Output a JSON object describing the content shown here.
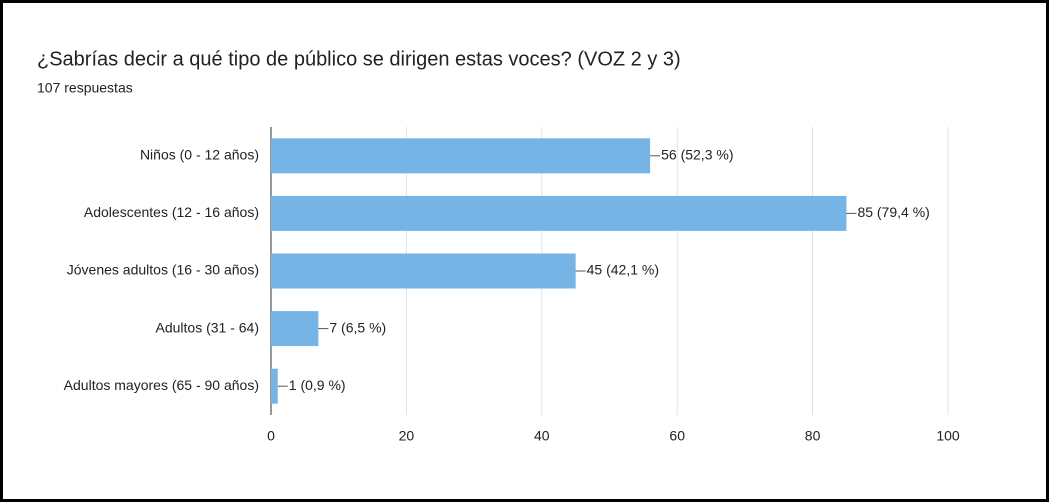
{
  "chart_data": {
    "type": "hbar",
    "title": "¿Sabrías decir a qué tipo de público se dirigen estas voces? (VOZ 2 y 3)",
    "subtitle": "107 respuestas",
    "categories": [
      "Niños (0 - 12 años)",
      "Adolescentes (12 - 16 años)",
      "Jóvenes adultos (16 - 30 años)",
      "Adultos (31 - 64)",
      "Adultos mayores (65 - 90 años)"
    ],
    "values": [
      56,
      85,
      45,
      7,
      1
    ],
    "value_labels": [
      "56 (52,3 %)",
      "85 (79,4 %)",
      "45 (42,1 %)",
      "7 (6,5 %)",
      "1 (0,9 %)"
    ],
    "color": "#77b4e6",
    "xlim": [
      0,
      100
    ],
    "xticks": [
      0,
      20,
      40,
      60,
      80,
      100
    ],
    "grid": true
  }
}
